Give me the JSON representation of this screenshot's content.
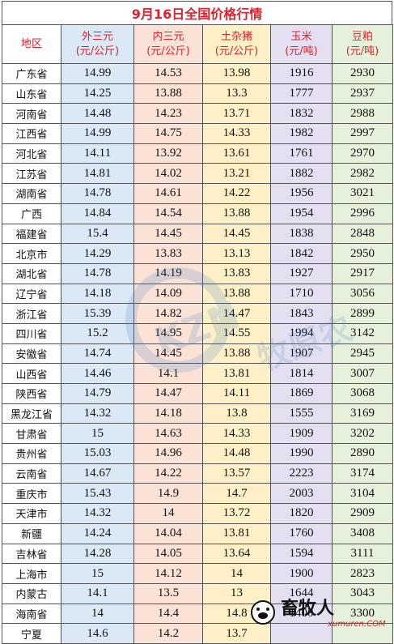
{
  "title": "9月16日全国价格行情",
  "headers": {
    "region": "地区",
    "outer": [
      "外三元",
      "(元/公斤)"
    ],
    "inner": [
      "内三元",
      "(元/公斤)"
    ],
    "pig": [
      "土杂猪",
      "(元/公斤)"
    ],
    "corn": [
      "玉米",
      "(元/吨)"
    ],
    "soy": [
      "豆粕",
      "(元/吨)"
    ]
  },
  "rows": [
    {
      "region": "广东省",
      "outer": "14.99",
      "inner": "14.53",
      "pig": "13.98",
      "corn": "1916",
      "soy": "2930"
    },
    {
      "region": "山东省",
      "outer": "14.25",
      "inner": "13.88",
      "pig": "13.3",
      "corn": "1777",
      "soy": "2937"
    },
    {
      "region": "河南省",
      "outer": "14.48",
      "inner": "14.23",
      "pig": "13.71",
      "corn": "1832",
      "soy": "2988"
    },
    {
      "region": "江西省",
      "outer": "14.99",
      "inner": "14.75",
      "pig": "14.33",
      "corn": "1982",
      "soy": "2997"
    },
    {
      "region": "河北省",
      "outer": "14.11",
      "inner": "13.92",
      "pig": "13.61",
      "corn": "1761",
      "soy": "2970"
    },
    {
      "region": "江苏省",
      "outer": "14.81",
      "inner": "14.02",
      "pig": "13.21",
      "corn": "1882",
      "soy": "2982"
    },
    {
      "region": "湖南省",
      "outer": "14.78",
      "inner": "14.61",
      "pig": "14.22",
      "corn": "1956",
      "soy": "3021"
    },
    {
      "region": "广西",
      "outer": "14.84",
      "inner": "14.54",
      "pig": "13.88",
      "corn": "1954",
      "soy": "2996"
    },
    {
      "region": "福建省",
      "outer": "15.4",
      "inner": "14.45",
      "pig": "14.45",
      "corn": "1838",
      "soy": "2848"
    },
    {
      "region": "北京市",
      "outer": "14.29",
      "inner": "13.83",
      "pig": "13.13",
      "corn": "1842",
      "soy": "2950"
    },
    {
      "region": "湖北省",
      "outer": "14.78",
      "inner": "14.19",
      "pig": "13.83",
      "corn": "1927",
      "soy": "2917"
    },
    {
      "region": "辽宁省",
      "outer": "14.18",
      "inner": "14.09",
      "pig": "13.88",
      "corn": "1710",
      "soy": "3056"
    },
    {
      "region": "浙江省",
      "outer": "15.39",
      "inner": "14.82",
      "pig": "14.47",
      "corn": "1843",
      "soy": "2899"
    },
    {
      "region": "四川省",
      "outer": "15.2",
      "inner": "14.95",
      "pig": "14.55",
      "corn": "1994",
      "soy": "3142"
    },
    {
      "region": "安徽省",
      "outer": "14.74",
      "inner": "14.45",
      "pig": "13.88",
      "corn": "1907",
      "soy": "2945"
    },
    {
      "region": "山西省",
      "outer": "14.46",
      "inner": "14.1",
      "pig": "13.81",
      "corn": "1814",
      "soy": "3007"
    },
    {
      "region": "陕西省",
      "outer": "14.79",
      "inner": "14.47",
      "pig": "14.11",
      "corn": "1869",
      "soy": "3068"
    },
    {
      "region": "黑龙江省",
      "outer": "14.32",
      "inner": "14.18",
      "pig": "13.8",
      "corn": "1555",
      "soy": "3169"
    },
    {
      "region": "甘肃省",
      "outer": "15",
      "inner": "14.63",
      "pig": "14.33",
      "corn": "1909",
      "soy": "3202"
    },
    {
      "region": "贵州省",
      "outer": "15.03",
      "inner": "14.96",
      "pig": "14.48",
      "corn": "1990",
      "soy": "2890"
    },
    {
      "region": "云南省",
      "outer": "14.67",
      "inner": "14.22",
      "pig": "13.57",
      "corn": "2223",
      "soy": "3174"
    },
    {
      "region": "重庆市",
      "outer": "15.43",
      "inner": "14.9",
      "pig": "14.7",
      "corn": "2003",
      "soy": "3104"
    },
    {
      "region": "天津市",
      "outer": "14.32",
      "inner": "14",
      "pig": "13.72",
      "corn": "1820",
      "soy": "2909"
    },
    {
      "region": "新疆",
      "outer": "14.24",
      "inner": "14.04",
      "pig": "13.81",
      "corn": "1760",
      "soy": "3408"
    },
    {
      "region": "吉林省",
      "outer": "14.28",
      "inner": "14.05",
      "pig": "13.64",
      "corn": "1594",
      "soy": "3111"
    },
    {
      "region": "上海市",
      "outer": "15",
      "inner": "14.12",
      "pig": "14",
      "corn": "1900",
      "soy": "2823"
    },
    {
      "region": "内蒙古",
      "outer": "14.1",
      "inner": "13.5",
      "pig": "13",
      "corn": "1644",
      "soy": "3043"
    },
    {
      "region": "海南省",
      "outer": "14",
      "inner": "14.4",
      "pig": "14.8",
      "corn": "1400",
      "soy": "3300"
    },
    {
      "region": "宁夏",
      "outer": "14.6",
      "inner": "14.2",
      "pig": "13.7",
      "corn": "",
      "soy": ""
    }
  ],
  "watermark": {
    "text": "KZN",
    "tagline": "牧原农"
  },
  "logo": {
    "name": "畜牧人",
    "url_text": "xumuren.COM"
  }
}
